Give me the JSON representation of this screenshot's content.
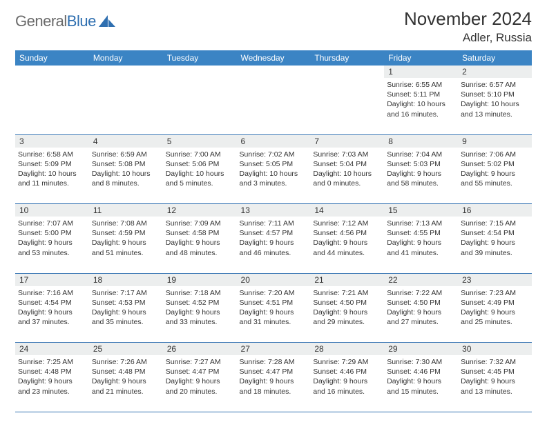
{
  "brand": {
    "name_gray": "General",
    "name_blue": "Blue"
  },
  "header": {
    "month_title": "November 2024",
    "location": "Adler, Russia"
  },
  "colors": {
    "header_bg": "#3b84c4",
    "rule": "#2f6fb0",
    "daynum_bg": "#eceeee",
    "text": "#333333",
    "logo_gray": "#6a6a6a",
    "logo_blue": "#2f6fb0"
  },
  "days_of_week": [
    "Sunday",
    "Monday",
    "Tuesday",
    "Wednesday",
    "Thursday",
    "Friday",
    "Saturday"
  ],
  "calendar": {
    "start_weekday_index": 5,
    "num_days": 30,
    "cells": [
      {
        "n": 1,
        "sunrise": "Sunrise: 6:55 AM",
        "sunset": "Sunset: 5:11 PM",
        "day1": "Daylight: 10 hours",
        "day2": "and 16 minutes."
      },
      {
        "n": 2,
        "sunrise": "Sunrise: 6:57 AM",
        "sunset": "Sunset: 5:10 PM",
        "day1": "Daylight: 10 hours",
        "day2": "and 13 minutes."
      },
      {
        "n": 3,
        "sunrise": "Sunrise: 6:58 AM",
        "sunset": "Sunset: 5:09 PM",
        "day1": "Daylight: 10 hours",
        "day2": "and 11 minutes."
      },
      {
        "n": 4,
        "sunrise": "Sunrise: 6:59 AM",
        "sunset": "Sunset: 5:08 PM",
        "day1": "Daylight: 10 hours",
        "day2": "and 8 minutes."
      },
      {
        "n": 5,
        "sunrise": "Sunrise: 7:00 AM",
        "sunset": "Sunset: 5:06 PM",
        "day1": "Daylight: 10 hours",
        "day2": "and 5 minutes."
      },
      {
        "n": 6,
        "sunrise": "Sunrise: 7:02 AM",
        "sunset": "Sunset: 5:05 PM",
        "day1": "Daylight: 10 hours",
        "day2": "and 3 minutes."
      },
      {
        "n": 7,
        "sunrise": "Sunrise: 7:03 AM",
        "sunset": "Sunset: 5:04 PM",
        "day1": "Daylight: 10 hours",
        "day2": "and 0 minutes."
      },
      {
        "n": 8,
        "sunrise": "Sunrise: 7:04 AM",
        "sunset": "Sunset: 5:03 PM",
        "day1": "Daylight: 9 hours",
        "day2": "and 58 minutes."
      },
      {
        "n": 9,
        "sunrise": "Sunrise: 7:06 AM",
        "sunset": "Sunset: 5:02 PM",
        "day1": "Daylight: 9 hours",
        "day2": "and 55 minutes."
      },
      {
        "n": 10,
        "sunrise": "Sunrise: 7:07 AM",
        "sunset": "Sunset: 5:00 PM",
        "day1": "Daylight: 9 hours",
        "day2": "and 53 minutes."
      },
      {
        "n": 11,
        "sunrise": "Sunrise: 7:08 AM",
        "sunset": "Sunset: 4:59 PM",
        "day1": "Daylight: 9 hours",
        "day2": "and 51 minutes."
      },
      {
        "n": 12,
        "sunrise": "Sunrise: 7:09 AM",
        "sunset": "Sunset: 4:58 PM",
        "day1": "Daylight: 9 hours",
        "day2": "and 48 minutes."
      },
      {
        "n": 13,
        "sunrise": "Sunrise: 7:11 AM",
        "sunset": "Sunset: 4:57 PM",
        "day1": "Daylight: 9 hours",
        "day2": "and 46 minutes."
      },
      {
        "n": 14,
        "sunrise": "Sunrise: 7:12 AM",
        "sunset": "Sunset: 4:56 PM",
        "day1": "Daylight: 9 hours",
        "day2": "and 44 minutes."
      },
      {
        "n": 15,
        "sunrise": "Sunrise: 7:13 AM",
        "sunset": "Sunset: 4:55 PM",
        "day1": "Daylight: 9 hours",
        "day2": "and 41 minutes."
      },
      {
        "n": 16,
        "sunrise": "Sunrise: 7:15 AM",
        "sunset": "Sunset: 4:54 PM",
        "day1": "Daylight: 9 hours",
        "day2": "and 39 minutes."
      },
      {
        "n": 17,
        "sunrise": "Sunrise: 7:16 AM",
        "sunset": "Sunset: 4:54 PM",
        "day1": "Daylight: 9 hours",
        "day2": "and 37 minutes."
      },
      {
        "n": 18,
        "sunrise": "Sunrise: 7:17 AM",
        "sunset": "Sunset: 4:53 PM",
        "day1": "Daylight: 9 hours",
        "day2": "and 35 minutes."
      },
      {
        "n": 19,
        "sunrise": "Sunrise: 7:18 AM",
        "sunset": "Sunset: 4:52 PM",
        "day1": "Daylight: 9 hours",
        "day2": "and 33 minutes."
      },
      {
        "n": 20,
        "sunrise": "Sunrise: 7:20 AM",
        "sunset": "Sunset: 4:51 PM",
        "day1": "Daylight: 9 hours",
        "day2": "and 31 minutes."
      },
      {
        "n": 21,
        "sunrise": "Sunrise: 7:21 AM",
        "sunset": "Sunset: 4:50 PM",
        "day1": "Daylight: 9 hours",
        "day2": "and 29 minutes."
      },
      {
        "n": 22,
        "sunrise": "Sunrise: 7:22 AM",
        "sunset": "Sunset: 4:50 PM",
        "day1": "Daylight: 9 hours",
        "day2": "and 27 minutes."
      },
      {
        "n": 23,
        "sunrise": "Sunrise: 7:23 AM",
        "sunset": "Sunset: 4:49 PM",
        "day1": "Daylight: 9 hours",
        "day2": "and 25 minutes."
      },
      {
        "n": 24,
        "sunrise": "Sunrise: 7:25 AM",
        "sunset": "Sunset: 4:48 PM",
        "day1": "Daylight: 9 hours",
        "day2": "and 23 minutes."
      },
      {
        "n": 25,
        "sunrise": "Sunrise: 7:26 AM",
        "sunset": "Sunset: 4:48 PM",
        "day1": "Daylight: 9 hours",
        "day2": "and 21 minutes."
      },
      {
        "n": 26,
        "sunrise": "Sunrise: 7:27 AM",
        "sunset": "Sunset: 4:47 PM",
        "day1": "Daylight: 9 hours",
        "day2": "and 20 minutes."
      },
      {
        "n": 27,
        "sunrise": "Sunrise: 7:28 AM",
        "sunset": "Sunset: 4:47 PM",
        "day1": "Daylight: 9 hours",
        "day2": "and 18 minutes."
      },
      {
        "n": 28,
        "sunrise": "Sunrise: 7:29 AM",
        "sunset": "Sunset: 4:46 PM",
        "day1": "Daylight: 9 hours",
        "day2": "and 16 minutes."
      },
      {
        "n": 29,
        "sunrise": "Sunrise: 7:30 AM",
        "sunset": "Sunset: 4:46 PM",
        "day1": "Daylight: 9 hours",
        "day2": "and 15 minutes."
      },
      {
        "n": 30,
        "sunrise": "Sunrise: 7:32 AM",
        "sunset": "Sunset: 4:45 PM",
        "day1": "Daylight: 9 hours",
        "day2": "and 13 minutes."
      }
    ]
  }
}
